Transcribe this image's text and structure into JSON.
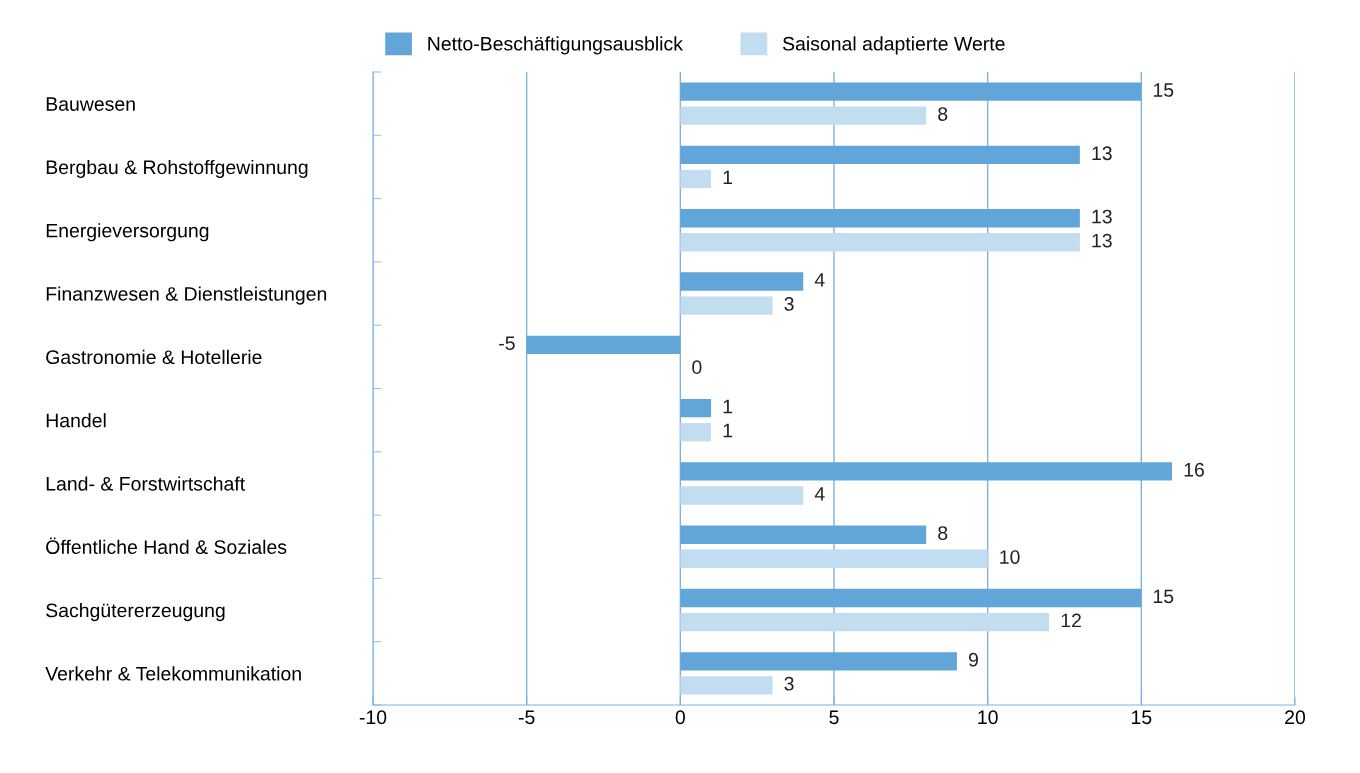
{
  "chart_data": {
    "type": "bar",
    "orientation": "horizontal",
    "categories": [
      "Bauwesen",
      "Bergbau & Rohstoffgewinnung",
      "Energieversorgung",
      "Finanzwesen & Dienstleistungen",
      "Gastronomie & Hotellerie",
      "Handel",
      "Land- & Forstwirtschaft",
      "Öffentliche Hand & Soziales",
      "Sachgütererzeugung",
      "Verkehr & Telekommunikation"
    ],
    "series": [
      {
        "name": "Netto-Beschäftigungsausblick",
        "color": "#62a5d9",
        "values": [
          15,
          13,
          13,
          4,
          -5,
          1,
          16,
          8,
          15,
          9
        ]
      },
      {
        "name": "Saisonal adaptierte Werte",
        "color": "#c2dcf0",
        "values": [
          8,
          1,
          13,
          3,
          0,
          1,
          4,
          10,
          12,
          3
        ]
      }
    ],
    "xlim": [
      -10,
      20
    ],
    "xticks": [
      -10,
      -5,
      0,
      5,
      10,
      15,
      20
    ],
    "grid": "x",
    "legend": "top",
    "data_labels": true
  }
}
